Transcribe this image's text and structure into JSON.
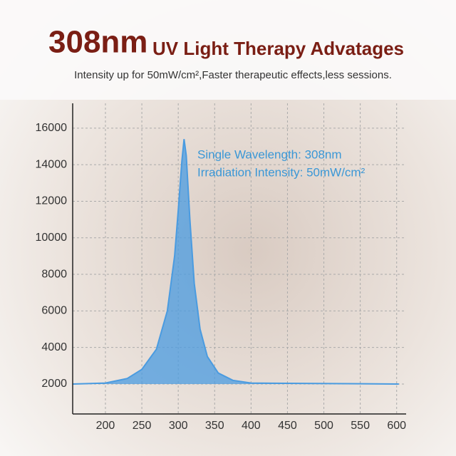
{
  "chart_data": {
    "type": "area",
    "title": "308nm",
    "title_suffix": "UV Light Therapy Advatages",
    "subtitle": "Intensity up for 50mW/cm²,Faster therapeutic effects,less sessions.",
    "annotations": [
      "Single Wavelength:  308nm",
      "Irradiation Intensity: 50mW/cm²"
    ],
    "x": [
      155,
      200,
      230,
      250,
      270,
      285,
      295,
      300,
      305,
      308,
      311,
      316,
      322,
      330,
      340,
      355,
      375,
      400,
      603
    ],
    "values": [
      2000,
      2050,
      2300,
      2800,
      3900,
      6000,
      9000,
      11500,
      14200,
      15400,
      14500,
      11000,
      7500,
      5000,
      3500,
      2600,
      2200,
      2050,
      2000
    ],
    "color": "#4a9be0",
    "xlim": [
      155,
      613
    ],
    "xticks": [
      200,
      250,
      300,
      350,
      400,
      450,
      500,
      550,
      600
    ],
    "ylim": [
      360,
      17360
    ],
    "yticks": [
      2000,
      4000,
      6000,
      8000,
      10000,
      12000,
      14000,
      16000
    ],
    "grid": true
  }
}
